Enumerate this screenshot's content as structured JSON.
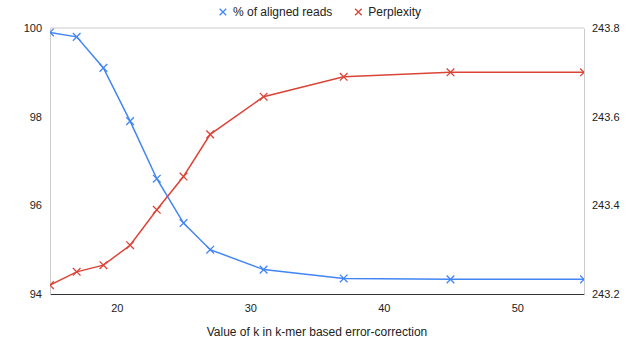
{
  "chart_data": {
    "type": "line",
    "x_label": "Value of k in k-mer based error-correction",
    "x": [
      15,
      17,
      19,
      21,
      23,
      25,
      27,
      31,
      37,
      45,
      55
    ],
    "xlim": [
      15,
      55
    ],
    "xticks": [
      20,
      30,
      40,
      50
    ],
    "ylim": [
      94,
      100
    ],
    "yticks": [
      94,
      96,
      98,
      100
    ],
    "y2lim": [
      243.2,
      243.8
    ],
    "y2ticks": [
      243.2,
      243.4,
      243.6,
      243.8
    ],
    "grid": false,
    "legend": "top",
    "marker": "x",
    "series": [
      {
        "name": "% of aligned reads",
        "color": "#4285f4",
        "values": [
          99.9,
          99.8,
          99.1,
          97.9,
          96.6,
          95.6,
          95.0,
          94.55,
          94.35,
          94.33,
          94.33
        ]
      },
      {
        "name": "Perplexity",
        "color": "#db4437",
        "axis": "y2",
        "values": [
          243.22,
          243.25,
          243.265,
          243.31,
          243.39,
          243.465,
          243.56,
          243.645,
          243.69,
          243.7,
          243.7
        ]
      }
    ]
  }
}
